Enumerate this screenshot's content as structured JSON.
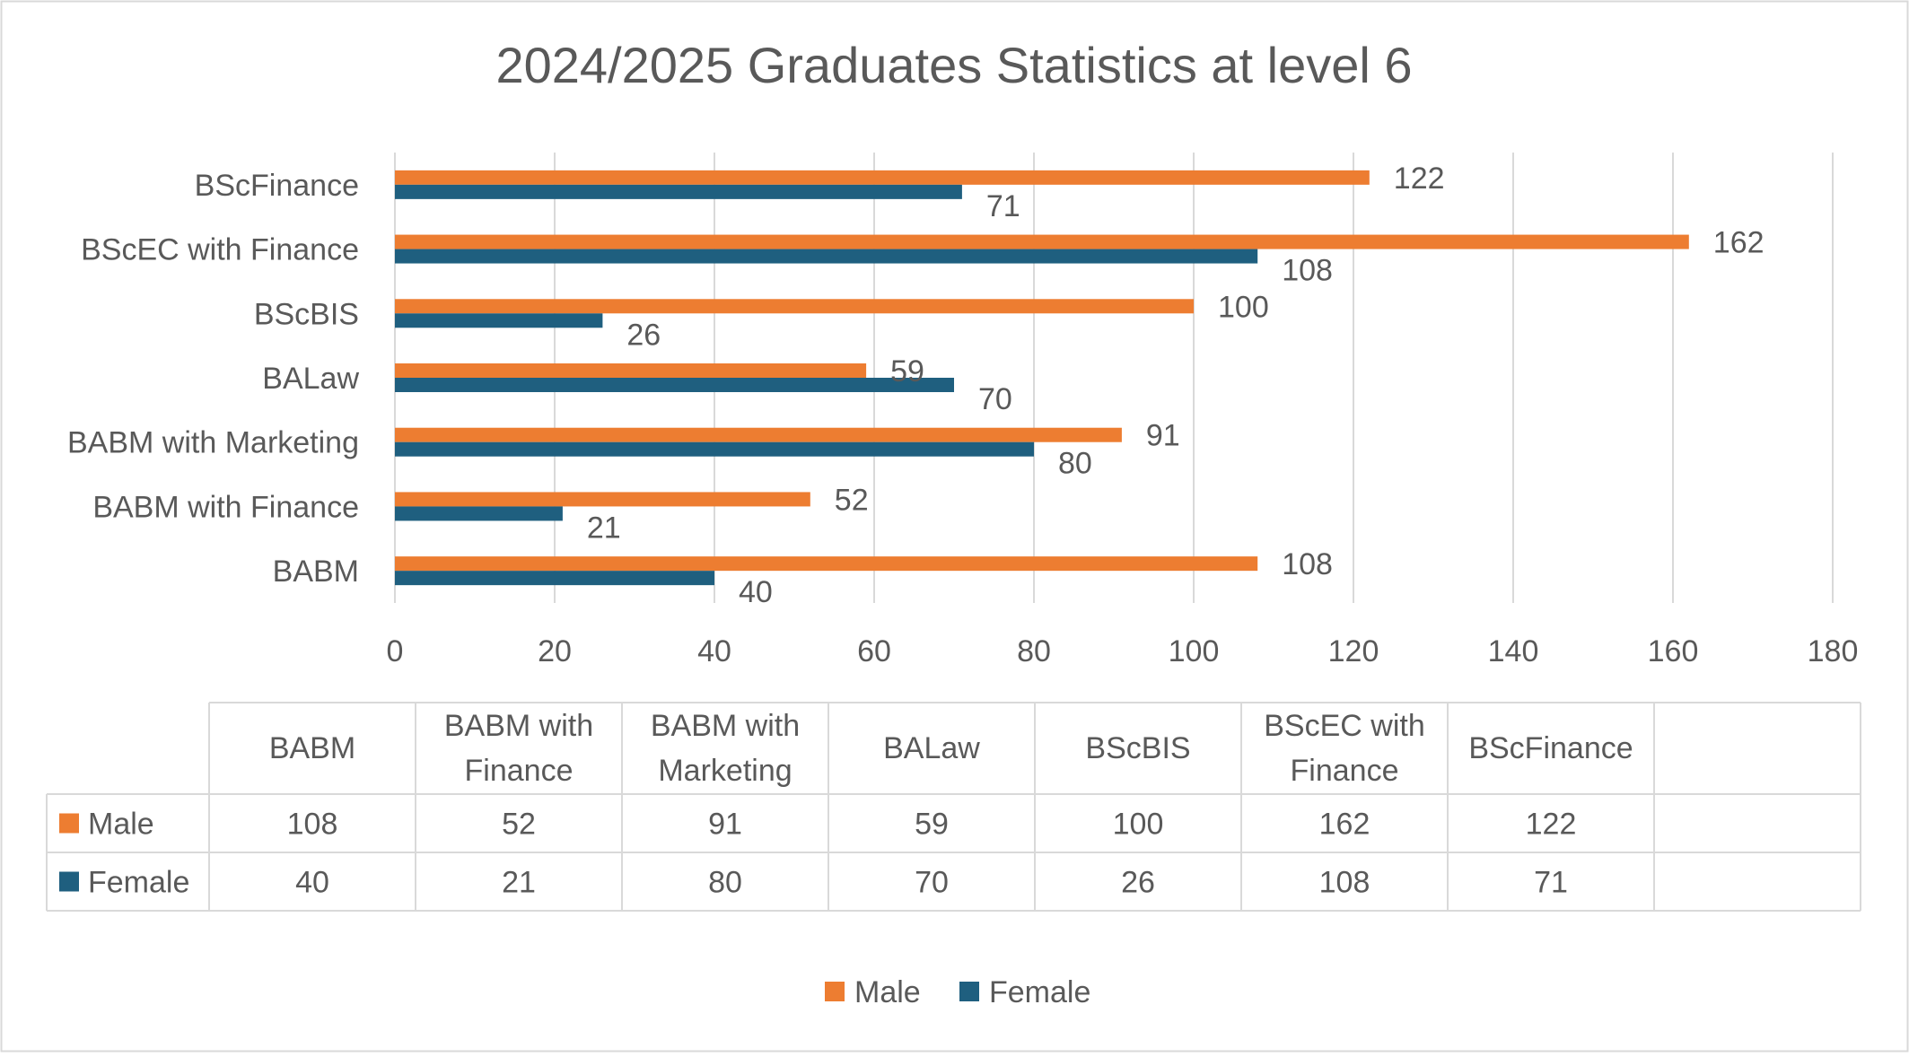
{
  "chart_data": {
    "type": "bar",
    "orientation": "horizontal",
    "title": "2024/2025 Graduates Statistics at level 6",
    "categories": [
      "BABM",
      "BABM with Finance",
      "BABM with Marketing",
      "BALaw",
      "BScBIS",
      "BScEC with Finance",
      "BScFinance"
    ],
    "table_headers": [
      [
        "BABM"
      ],
      [
        "BABM with",
        "Finance"
      ],
      [
        "BABM with",
        "Marketing"
      ],
      [
        "BALaw"
      ],
      [
        "BScBIS"
      ],
      [
        "BScEC with",
        "Finance"
      ],
      [
        "BScFinance"
      ]
    ],
    "series": [
      {
        "name": "Male",
        "color": "#ED7D31",
        "values": [
          108,
          52,
          91,
          59,
          100,
          162,
          122
        ]
      },
      {
        "name": "Female",
        "color": "#1F5F7F",
        "values": [
          40,
          21,
          80,
          70,
          26,
          108,
          71
        ]
      }
    ],
    "xlim": [
      0,
      180
    ],
    "xticks": [
      0,
      20,
      40,
      60,
      80,
      100,
      120,
      140,
      160,
      180
    ],
    "grid": true,
    "data_table": true,
    "legend": "bottom"
  }
}
